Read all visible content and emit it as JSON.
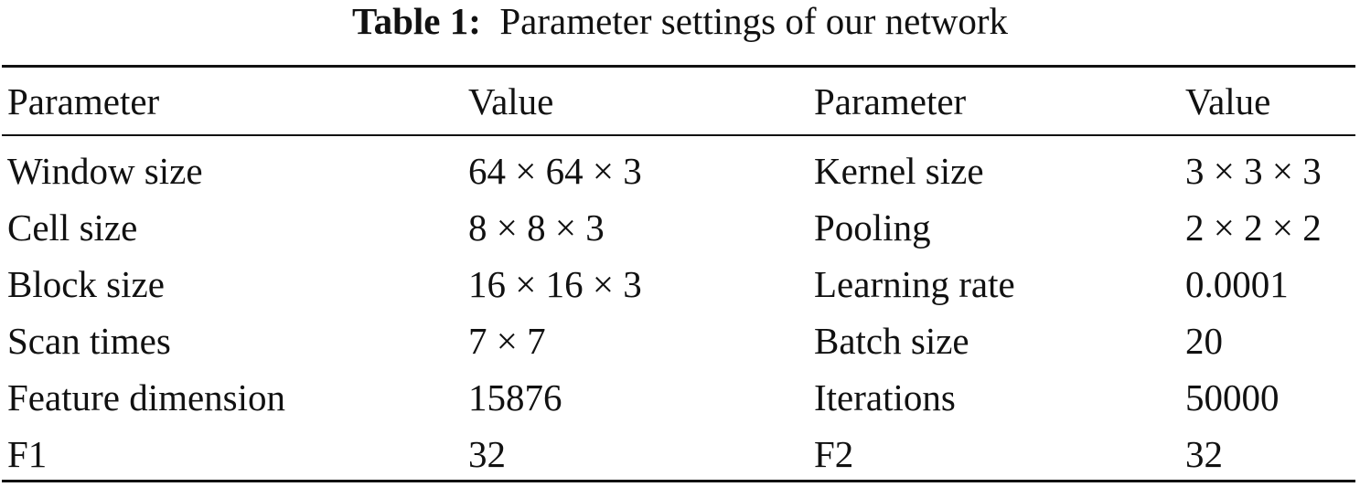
{
  "caption": {
    "label": "Table 1:",
    "text": "Parameter settings of our network"
  },
  "table": {
    "headers": [
      "Parameter",
      "Value",
      "Parameter",
      "Value"
    ],
    "rows": [
      [
        "Window size",
        "64 × 64 × 3",
        "Kernel size",
        "3 × 3 × 3"
      ],
      [
        "Cell size",
        "8 × 8 × 3",
        "Pooling",
        "2 × 2 × 2"
      ],
      [
        "Block size",
        "16 × 16 × 3",
        "Learning rate",
        "0.0001"
      ],
      [
        "Scan times",
        "7 × 7",
        "Batch size",
        "20"
      ],
      [
        "Feature dimension",
        "15876",
        "Iterations",
        "50000"
      ],
      [
        "F1",
        "32",
        "F2",
        "32"
      ]
    ]
  }
}
